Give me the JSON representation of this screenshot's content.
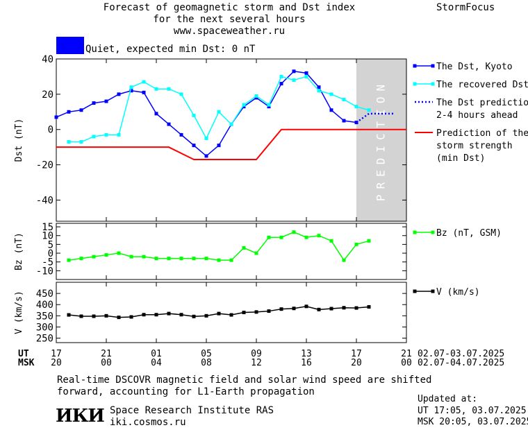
{
  "header": {
    "title_lines": [
      "Forecast of geomagnetic storm and Dst index",
      "for the next several hours",
      "www.spaceweather.ru"
    ],
    "brand": "StormFocus"
  },
  "status_indicator": {
    "text": "Quiet, expected min Dst: 0 nT",
    "color": "#0000ff"
  },
  "prediction_band_label": "PREDICTION",
  "time_axis": {
    "ut_label": "UT",
    "msk_label": "MSK",
    "ut_ticks": [
      "17",
      "21",
      "01",
      "05",
      "09",
      "13",
      "17",
      "21"
    ],
    "msk_ticks": [
      "20",
      "00",
      "04",
      "08",
      "12",
      "16",
      "20",
      "00"
    ],
    "ut_dates": "02.07-03.07.2025",
    "msk_dates": "02.07-04.07.2025"
  },
  "chart_data": [
    {
      "type": "line",
      "ylabel": "Dst (nT)",
      "ylim": [
        -52,
        40
      ],
      "yticks": [
        40,
        20,
        0,
        -20,
        -40
      ],
      "x_range_hours": [
        0,
        28
      ],
      "prediction_shade_start_hour": 24,
      "legend_position": "right",
      "series": [
        {
          "name": "The Dst, Kyoto",
          "color": "#0000ff",
          "x": [
            0,
            1,
            2,
            3,
            4,
            5,
            6,
            7,
            8,
            9,
            10,
            11,
            12,
            13,
            14,
            15,
            16,
            17,
            18,
            19,
            20,
            21,
            22,
            23,
            24
          ],
          "values": [
            7,
            10,
            11,
            15,
            16,
            20,
            22,
            21,
            9,
            3,
            -3,
            -9,
            -15,
            -9,
            3,
            13,
            18,
            13,
            26,
            33,
            32,
            24,
            11,
            5,
            4
          ]
        },
        {
          "name": "The recovered Dst",
          "color": "#00ffff",
          "x": [
            1,
            2,
            3,
            4,
            5,
            6,
            7,
            8,
            9,
            10,
            11,
            12,
            13,
            14,
            15,
            16,
            17,
            18,
            19,
            20,
            21,
            22,
            23,
            24,
            25
          ],
          "values": [
            -7,
            -7,
            -4,
            -3,
            -3,
            24,
            27,
            23,
            23,
            20,
            8,
            -5,
            10,
            3,
            14,
            19,
            14,
            30,
            28,
            30,
            22,
            20,
            17,
            13,
            11
          ]
        },
        {
          "name": "The Dst prediction\n2-4 hours ahead",
          "color": "#0000ff",
          "style": "dotted",
          "x": [
            24,
            25,
            26,
            27
          ],
          "values": [
            4,
            9,
            9,
            9
          ]
        },
        {
          "name": "Prediction of the\nstorm strength\n(min Dst)",
          "color": "#ff0000",
          "x": [
            0,
            9,
            11,
            16,
            18,
            28
          ],
          "values": [
            -10,
            -10,
            -17,
            -17,
            0,
            0
          ]
        }
      ]
    },
    {
      "type": "line",
      "ylabel": "Bz (nT)",
      "ylim": [
        -15,
        17
      ],
      "yticks": [
        15,
        10,
        5,
        0,
        -5,
        -10
      ],
      "series": [
        {
          "name": "Bz (nT, GSM)",
          "color": "#00ff00",
          "x": [
            1,
            2,
            3,
            4,
            5,
            6,
            7,
            8,
            9,
            10,
            11,
            12,
            13,
            14,
            15,
            16,
            17,
            18,
            19,
            20,
            21,
            22,
            23,
            24,
            25
          ],
          "values": [
            -4,
            -3,
            -2,
            -1,
            0,
            -2,
            -2,
            -3,
            -3,
            -3,
            -3,
            -3,
            -4,
            -4,
            3,
            0,
            9,
            9,
            12,
            9,
            10,
            7,
            -4,
            5,
            7
          ]
        }
      ]
    },
    {
      "type": "line",
      "ylabel": "V (km/s)",
      "ylim": [
        230,
        500
      ],
      "yticks": [
        450,
        400,
        350,
        300,
        250
      ],
      "series": [
        {
          "name": "V (km/s)",
          "color": "#000000",
          "x": [
            1,
            2,
            3,
            4,
            5,
            6,
            7,
            8,
            9,
            10,
            11,
            12,
            13,
            14,
            15,
            16,
            17,
            18,
            19,
            20,
            21,
            22,
            23,
            24,
            25
          ],
          "values": [
            354,
            348,
            348,
            350,
            343,
            345,
            355,
            355,
            360,
            355,
            347,
            350,
            360,
            354,
            365,
            367,
            371,
            380,
            383,
            392,
            378,
            382,
            386,
            385,
            390
          ]
        }
      ]
    }
  ],
  "footnote_lines": [
    "Real-time DSCOVR magnetic field and solar wind speed are shifted",
    "forward, accounting for L1-Earth propagation"
  ],
  "institute": {
    "logo_text": "ИКИ",
    "name": "Space Research Institute RAS",
    "site": "iki.cosmos.ru"
  },
  "updated": {
    "heading": "Updated at:",
    "ut_line": "UT   17:05, 03.07.2025",
    "msk_line": "MSK 20:05, 03.07.2025"
  }
}
